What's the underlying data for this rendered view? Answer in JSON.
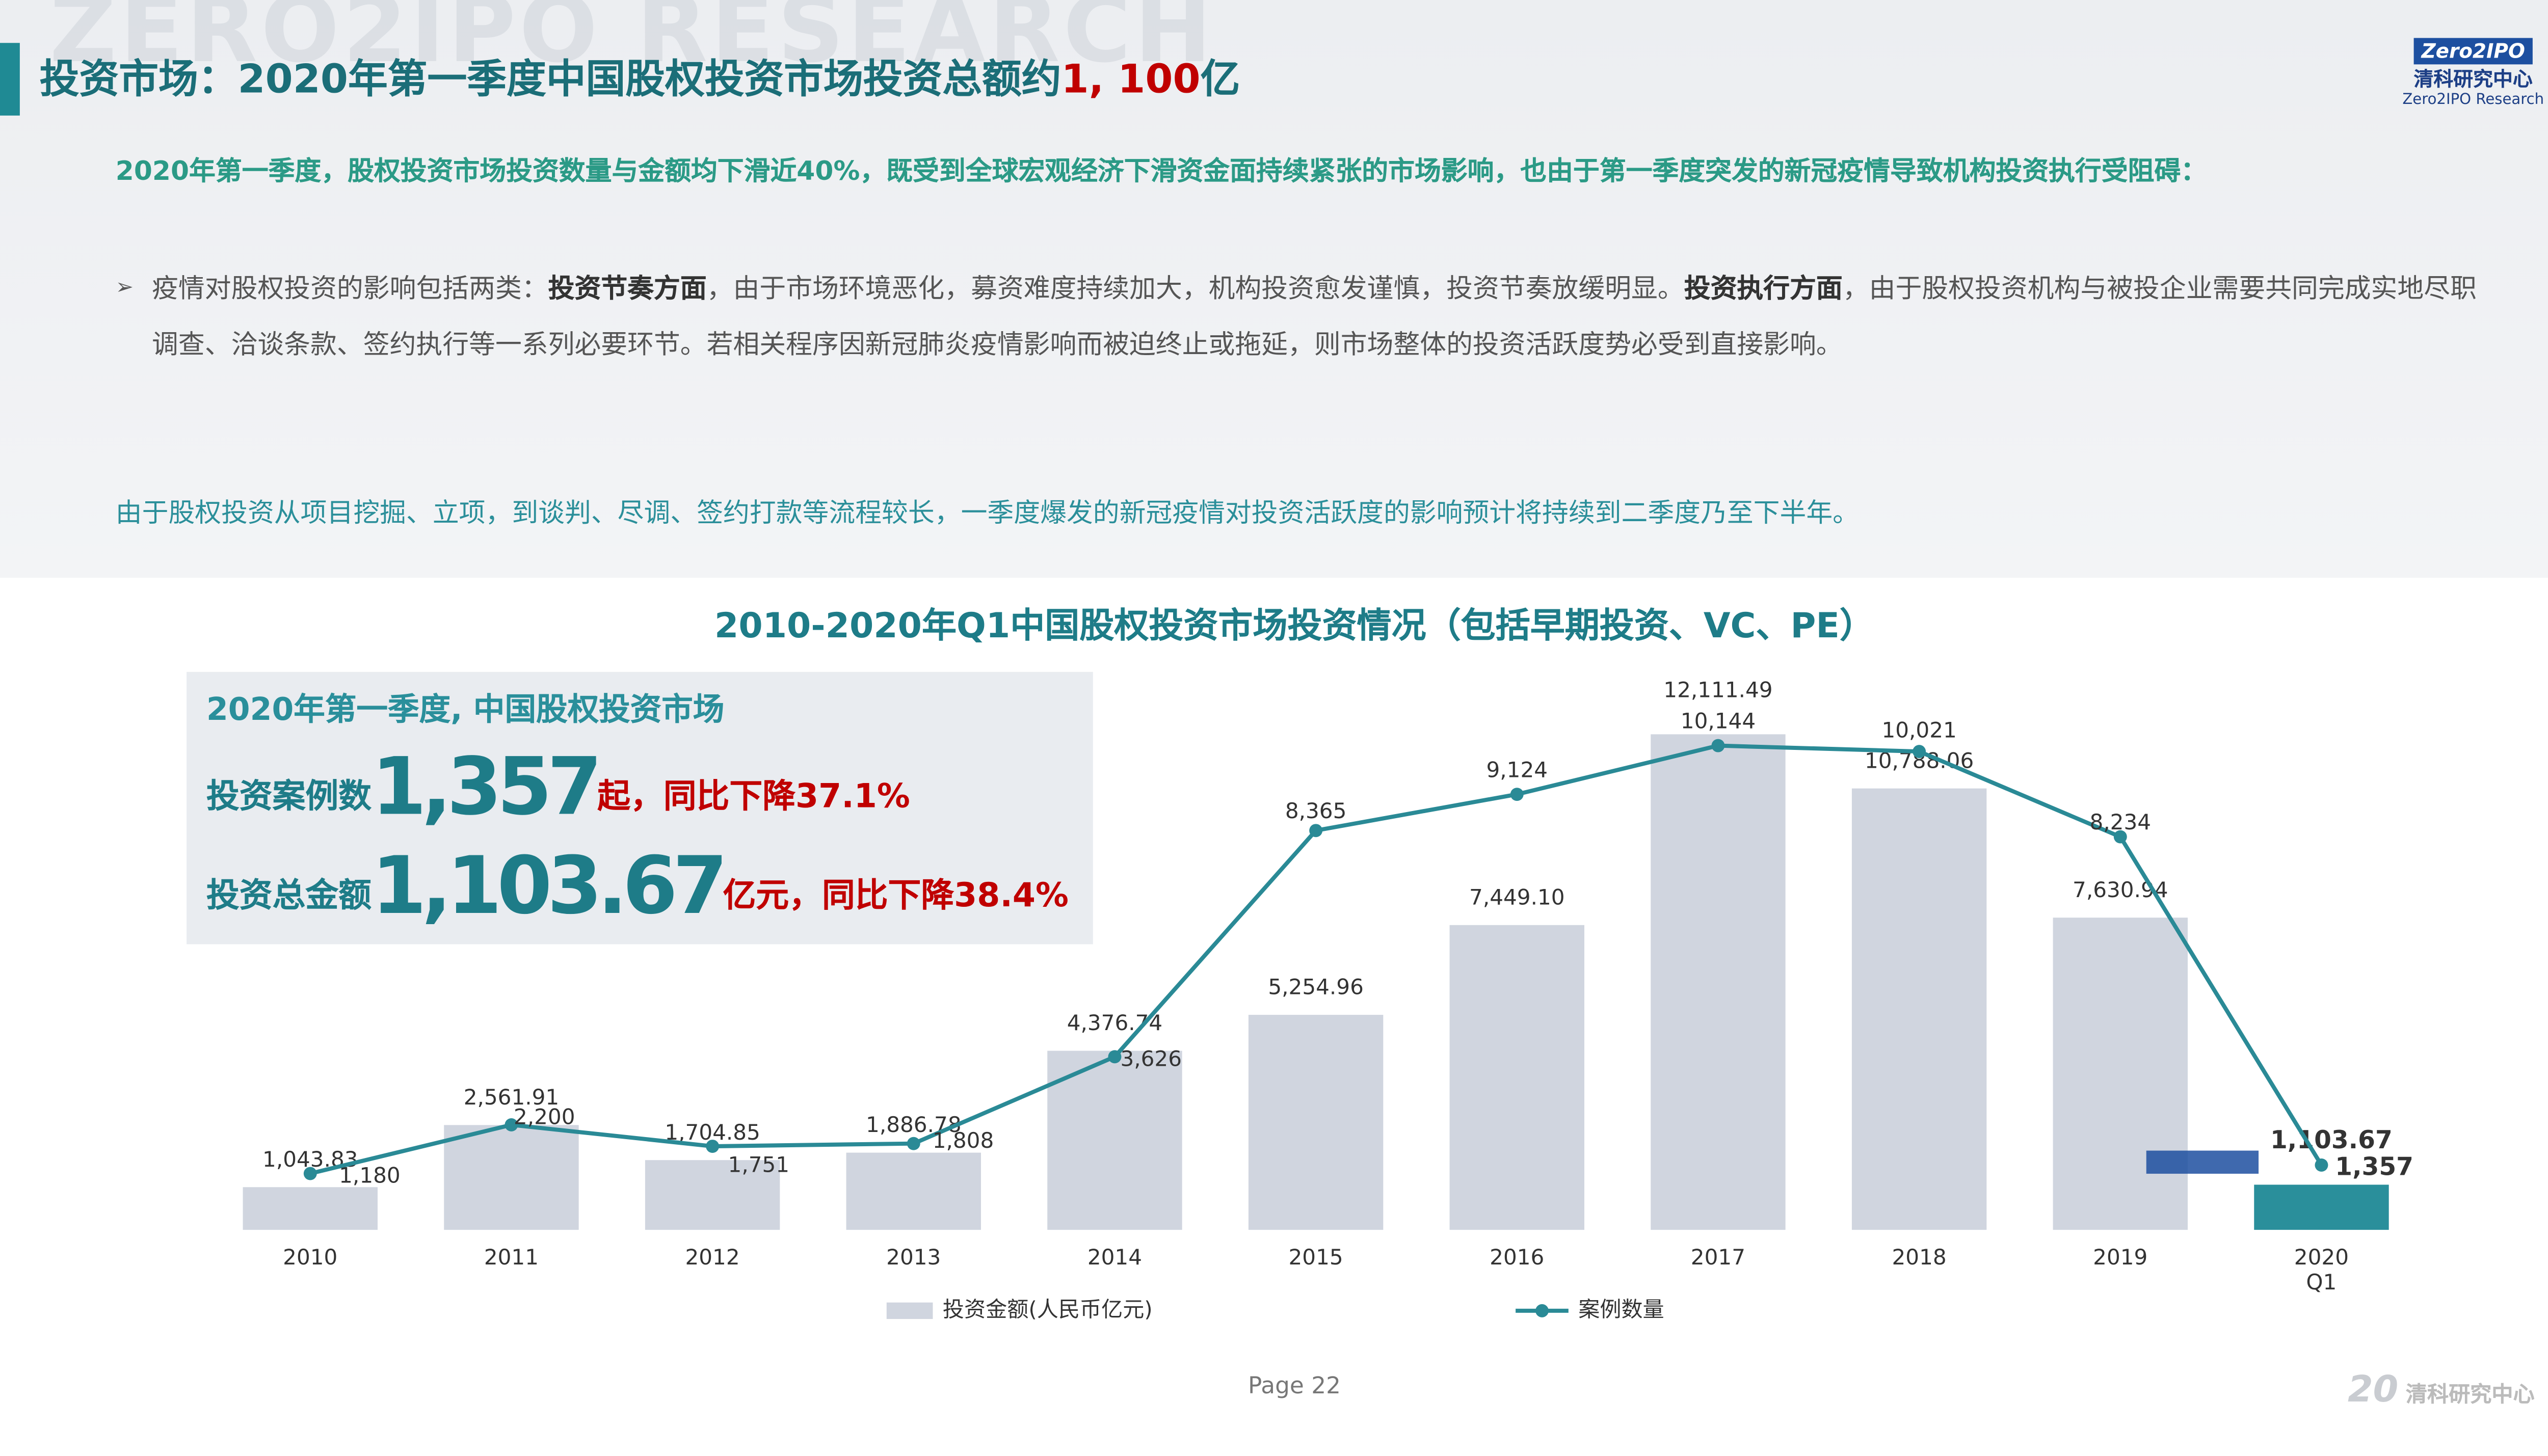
{
  "header": {
    "title": [
      "投资市场：2020年第一季度中国股权投资市场投资总额约",
      "1, 100",
      "亿"
    ],
    "watermark": "ZERO2IPO RESEARCH",
    "logo": {
      "mark": "Zero2IPO",
      "name": "清科研究中心",
      "sub": "Zero2IPO Research"
    }
  },
  "body": {
    "intro": "2020年第一季度，股权投资市场投资数量与金额均下滑近40%，既受到全球宏观经济下滑资金面持续紧张的市场影响，也由于第一季度突发的新冠疫情导致机构投资执行受阻碍：",
    "bullet": [
      "疫情对股权投资的影响包括两类：",
      "投资节奏方面",
      "，由于市场环境恶化，募资难度持续加大，机构投资愈发谨慎，投资节奏放缓明显。",
      "投资执行方面",
      "，由于股权投资机构与被投企业需要共同完成实地尽职调查、洽谈条款、签约执行等一系列必要环节。若相关程序因新冠肺炎疫情影响而被迫终止或拖延，则市场整体的投资活跃度势必受到直接影响。"
    ],
    "closing": "由于股权投资从项目挖掘、立项，到谈判、尽调、签约打款等流程较长，一季度爆发的新冠疫情对投资活跃度的影响预计将持续到二季度乃至下半年。"
  },
  "inset": {
    "heading": "2020年第一季度, 中国股权投资市场",
    "row1": [
      "投资案例数",
      "1,357",
      "起，",
      "同比下降37.1%"
    ],
    "row2": [
      "投资总金额",
      "1,103.67",
      "亿元，",
      "同比下降38.4%"
    ]
  },
  "chart_data": {
    "type": "bar-line",
    "title": "2010-2020年Q1中国股权投资市场投资情况（包括早期投资、VC、PE）",
    "categories": [
      "2010",
      "2011",
      "2012",
      "2013",
      "2014",
      "2015",
      "2016",
      "2017",
      "2018",
      "2019",
      "2020\nQ1"
    ],
    "ylim": [
      0,
      14000
    ],
    "y2lim": [
      0,
      12000
    ],
    "grid": false,
    "legend": "bottom",
    "series": [
      {
        "name": "投资金额(人民币亿元)",
        "type": "bar",
        "colors": [
          "#d0d5df",
          "#d0d5df",
          "#d0d5df",
          "#d0d5df",
          "#d0d5df",
          "#d0d5df",
          "#d0d5df",
          "#d0d5df",
          "#d0d5df",
          "#d0d5df",
          "#2a8f9b"
        ],
        "values": [
          1043.83,
          2561.91,
          1704.85,
          1886.78,
          4376.74,
          5254.96,
          7449.1,
          12111.49,
          10788.06,
          7630.94,
          1103.67
        ],
        "value_labels": [
          "1,043.83",
          "2,561.91",
          "1,704.85",
          "1,886.78",
          "4,376.74",
          "5,254.96",
          "7,449.10",
          "12,111.49",
          "10,788.06",
          "7,630.94",
          "1,103.67"
        ]
      },
      {
        "name": "案例数量",
        "type": "line",
        "axis": "y2",
        "color": "#2a8a96",
        "values": [
          1180,
          2200,
          1751,
          1808,
          3626,
          8365,
          9124,
          10144,
          10021,
          8234,
          1357
        ],
        "value_labels": [
          "1,180",
          "2,200",
          "1,751",
          "1,808",
          "3,626",
          "8,365",
          "9,124",
          "10,144",
          "10,021",
          "8,234",
          "1,357"
        ]
      }
    ]
  },
  "footer": {
    "page": "Page  22",
    "brand_number": "20",
    "brand_name": "清科研究中心"
  }
}
